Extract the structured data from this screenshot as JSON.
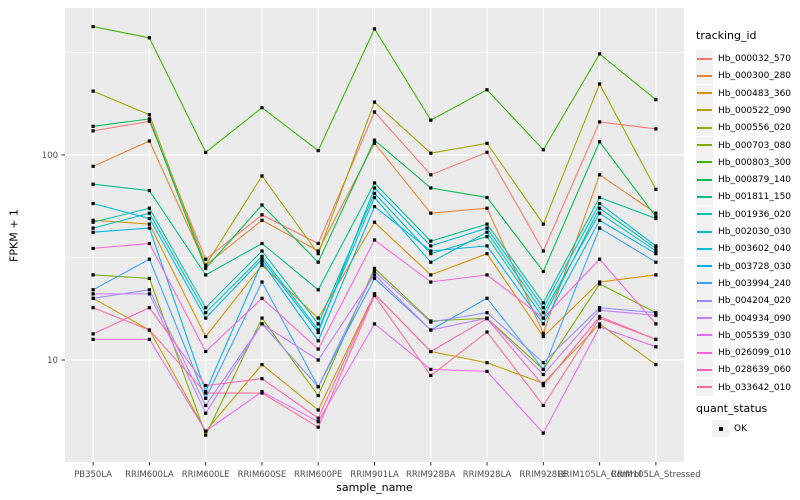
{
  "figure": {
    "background": "#FFFFFF",
    "panel_background": "#EBEBEB",
    "grid_color": "#FFFFFF",
    "axis_text_color": "#4D4D4D",
    "tick_color": "#333333",
    "point_color": "#000000"
  },
  "axes": {
    "x_title": "sample_name",
    "y_title": "FPKM + 1",
    "y_tick_labels": [
      "100",
      "10"
    ],
    "y_tick_values": [
      100,
      10
    ],
    "y_minor_values": [
      316.2,
      31.62
    ]
  },
  "legend": {
    "title": "tracking_id"
  },
  "legend2": {
    "title": "quant_status",
    "items": [
      {
        "label": "OK",
        "marker": "black-square"
      }
    ]
  },
  "chart_data": {
    "type": "line",
    "title": "",
    "xlabel": "sample_name",
    "ylabel": "FPKM + 1",
    "yscale": "log10",
    "ylim": [
      3.18,
      521
    ],
    "grid": "major-and-minor",
    "legend_position": "right",
    "point_marker": "black-square",
    "categories": [
      "PB350LA",
      "RRIM600LA",
      "RRIM600LE",
      "RRIM600SE",
      "RRIM600PE",
      "RRIM901LA",
      "RRIM928BA",
      "RRIM928LA",
      "RRIM928LE",
      "RRIM105LA_Control",
      "RRIM105LA_Stressed"
    ],
    "series": [
      {
        "name": "Hb_000032_570",
        "color": "#F8766D",
        "values": [
          131,
          146,
          31,
          51,
          37,
          162,
          80,
          103,
          34,
          145,
          134
        ]
      },
      {
        "name": "Hb_000300_280",
        "color": "#EA8331",
        "values": [
          88,
          117,
          29,
          48,
          34,
          114,
          52,
          55,
          13.5,
          80,
          52
        ]
      },
      {
        "name": "Hb_000483_360",
        "color": "#D89000",
        "values": [
          48,
          46,
          13,
          29,
          16,
          47,
          26,
          33,
          13,
          24,
          26
        ]
      },
      {
        "name": "Hb_000522_090",
        "color": "#C09B00",
        "values": [
          20,
          14,
          4.5,
          9.5,
          5.7,
          21,
          11,
          9.7,
          7.7,
          15,
          9.5
        ]
      },
      {
        "name": "Hb_000556_020",
        "color": "#A3A500",
        "values": [
          205,
          157,
          29,
          79,
          33,
          181,
          102,
          114,
          46,
          222,
          68
        ]
      },
      {
        "name": "Hb_000703_080",
        "color": "#7CAE00",
        "values": [
          26,
          25,
          4.3,
          16,
          6.7,
          28,
          15.5,
          16,
          9,
          23.5,
          17
        ]
      },
      {
        "name": "Hb_000803_300",
        "color": "#39B600",
        "values": [
          423,
          373,
          103,
          170,
          105,
          412,
          148,
          208,
          106,
          311,
          186
        ]
      },
      {
        "name": "Hb_000879_140",
        "color": "#00BB4E",
        "values": [
          138,
          150,
          28,
          57,
          30,
          118,
          69,
          62,
          27,
          116,
          50
        ]
      },
      {
        "name": "Hb_001811_150",
        "color": "#00C087",
        "values": [
          72,
          67,
          26,
          37,
          22,
          73,
          38,
          46,
          19,
          62,
          49
        ]
      },
      {
        "name": "Hb_001936_020",
        "color": "#00C1AB",
        "values": [
          47,
          55,
          18,
          34,
          15,
          65,
          33,
          40,
          16,
          55,
          35
        ]
      },
      {
        "name": "Hb_002030_030",
        "color": "#00BFC4",
        "values": [
          44,
          52,
          17,
          32,
          14,
          62,
          30,
          42,
          17,
          52,
          34
        ]
      },
      {
        "name": "Hb_003602_040",
        "color": "#00BAE0",
        "values": [
          58,
          49,
          16,
          31,
          13.6,
          69,
          36,
          44,
          18,
          58,
          36
        ]
      },
      {
        "name": "Hb_003728_030",
        "color": "#00B0F6",
        "values": [
          42,
          44,
          7,
          30,
          12.4,
          56,
          34,
          36,
          15,
          48,
          33
        ]
      },
      {
        "name": "Hb_003994_240",
        "color": "#35A2FF",
        "values": [
          22,
          31,
          6.5,
          24,
          7.4,
          25,
          14,
          20,
          9,
          44,
          30
        ]
      },
      {
        "name": "Hb_004204_020",
        "color": "#9590FF",
        "values": [
          20,
          22,
          6,
          15,
          7.4,
          27,
          15.3,
          17,
          9.7,
          18,
          17
        ]
      },
      {
        "name": "Hb_004934_090",
        "color": "#C77CFF",
        "values": [
          21,
          21,
          5.5,
          15,
          10,
          26,
          14,
          16,
          8.5,
          17.5,
          16.5
        ]
      },
      {
        "name": "Hb_005539_030",
        "color": "#E76BF3",
        "values": [
          12.6,
          12.6,
          4.5,
          7,
          5,
          15,
          9,
          8.8,
          4.4,
          14.5,
          11.6
        ]
      },
      {
        "name": "Hb_026099_010",
        "color": "#FA62DB",
        "values": [
          35,
          37,
          11,
          20,
          11.3,
          38.5,
          24,
          26,
          16,
          31,
          15
        ]
      },
      {
        "name": "Hb_028639_060",
        "color": "#FF62BC",
        "values": [
          13.4,
          18,
          7.5,
          8.1,
          5.2,
          21,
          11,
          15.9,
          7.5,
          16.3,
          12.6
        ]
      },
      {
        "name": "Hb_033642_010",
        "color": "#FF6A98",
        "values": [
          18,
          14,
          6.9,
          6.9,
          4.7,
          20.6,
          8.4,
          13.7,
          6,
          16,
          12.6
        ]
      }
    ]
  }
}
